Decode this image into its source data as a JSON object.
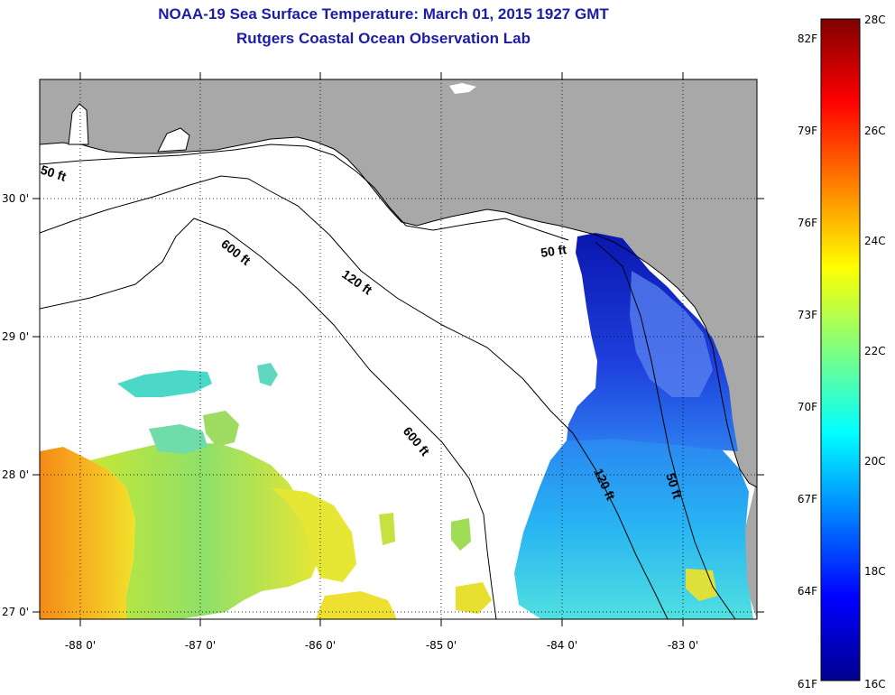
{
  "title": {
    "line1": "NOAA-19 Sea Surface Temperature:  March 01, 2015 1927 GMT",
    "line2": "Rutgers Coastal Ocean Observation Lab"
  },
  "map": {
    "lon_ticks": [
      "-88 0'",
      "-87 0'",
      "-86 0'",
      "-85 0'",
      "-84 0'",
      "-83 0'"
    ],
    "lat_ticks": [
      "30 0'",
      "29 0'",
      "28 0'",
      "27 0'"
    ],
    "contour_labels": [
      "50 ft",
      "600 ft",
      "120 ft",
      "50 ft",
      "600 ft",
      "120 ft",
      "50 ft"
    ],
    "colors": {
      "land": "#a8a8a8",
      "ocean_nodata": "#ffffff",
      "coast": "#000000"
    }
  },
  "colorbar": {
    "fahrenheit": [
      "82F",
      "79F",
      "76F",
      "73F",
      "70F",
      "67F",
      "64F",
      "61F"
    ],
    "celsius": [
      "28C",
      "26C",
      "24C",
      "22C",
      "20C",
      "18C",
      "16C"
    ],
    "range_c": [
      16,
      28
    ],
    "colormap": "jet"
  },
  "chart_data": {
    "type": "heatmap",
    "title": "NOAA-19 Sea Surface Temperature:  March 01, 2015 1927 GMT",
    "subtitle": "Rutgers Coastal Ocean Observation Lab",
    "x": [
      -88,
      -87,
      -86,
      -85,
      -84,
      -83
    ],
    "y": [
      30,
      29,
      28,
      27
    ],
    "xlim": [
      -88.35,
      -82.35
    ],
    "ylim": [
      26.95,
      30.9
    ],
    "color_range_c": [
      16,
      28
    ],
    "grid": true,
    "regions": [
      {
        "area": "west (lon -88.3 to -87.7, lat 27 to 28.1)",
        "sst_c": 24
      },
      {
        "area": "central Gulf (lon -87.7 to -86.0, lat 27 to 28.4)",
        "sst_c": 22.5
      },
      {
        "area": "Big Bend shelf (lon -84.0 to -83.0, lat 28.3 to 29.8)",
        "sst_c": 16.5
      },
      {
        "area": "west Florida shelf (lon -84.3 to -82.6, lat 27 to 28.3)",
        "sst_c": 19.5
      }
    ]
  }
}
